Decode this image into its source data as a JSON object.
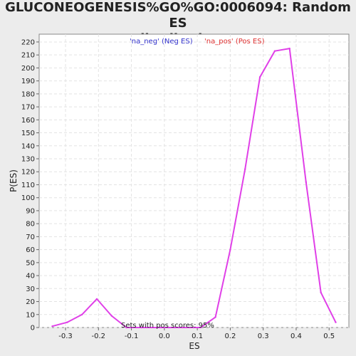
{
  "chart_data": {
    "type": "line",
    "title_line1": "GLUCONEOGENESIS%GO%GO:0006094: Random ES",
    "title_line2": "distribution",
    "xlabel": "ES",
    "ylabel": "P(ES)",
    "xlim": [
      -0.38,
      0.56
    ],
    "ylim": [
      0,
      226
    ],
    "xticks": [
      -0.3,
      -0.2,
      -0.1,
      0.0,
      0.1,
      0.2,
      0.3,
      0.4,
      0.5
    ],
    "xtick_labels": [
      "-0.3",
      "-0.2",
      "-0.1",
      "0.0",
      "0.1",
      "0.2",
      "0.3",
      "0.4",
      "0.5"
    ],
    "yticks": [
      0,
      10,
      20,
      30,
      40,
      50,
      60,
      70,
      80,
      90,
      100,
      110,
      120,
      130,
      140,
      150,
      160,
      170,
      180,
      190,
      200,
      210,
      220
    ],
    "ytick_labels": [
      "0",
      "10",
      "20",
      "30",
      "40",
      "50",
      "60",
      "70",
      "80",
      "90",
      "100",
      "110",
      "120",
      "130",
      "140",
      "150",
      "160",
      "170",
      "180",
      "190",
      "200",
      "210",
      "220"
    ],
    "grid": true,
    "legend_placement": "top",
    "legend": [
      {
        "label": "'na_neg' (Neg ES)",
        "color": "#3333cc"
      },
      {
        "label": "'na_pos' (Pos ES)",
        "color": "#e03333"
      }
    ],
    "annotation": "Sets with pos scores: 95%",
    "series": [
      {
        "color": "#e040e8",
        "x": [
          -0.34,
          -0.295,
          -0.25,
          -0.205,
          -0.16,
          -0.115,
          -0.07,
          0.11,
          0.155,
          0.2,
          0.245,
          0.29,
          0.335,
          0.38,
          0.43,
          0.475,
          0.52
        ],
        "y": [
          1,
          4,
          10,
          22,
          9,
          0,
          0,
          0,
          8,
          60,
          122,
          193,
          213,
          215,
          112,
          27,
          4
        ]
      }
    ]
  }
}
